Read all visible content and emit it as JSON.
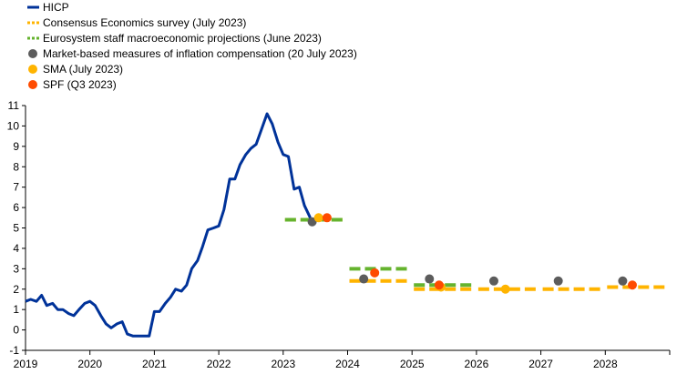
{
  "chart_data": {
    "type": "line",
    "title": "",
    "xlabel": "",
    "ylabel": "",
    "xlim": [
      2019.0,
      2029.0
    ],
    "ylim": [
      -1,
      11
    ],
    "x_ticks": [
      "2019",
      "2020",
      "2021",
      "2022",
      "2023",
      "2024",
      "2025",
      "2026",
      "2027",
      "2028"
    ],
    "y_ticks": [
      "-1",
      "0",
      "1",
      "2",
      "3",
      "4",
      "5",
      "6",
      "7",
      "8",
      "9",
      "10",
      "11"
    ],
    "grid": "none",
    "legend_position": "top-left",
    "legend": [
      {
        "label": "HICP",
        "style": "line",
        "color": "#003299"
      },
      {
        "label": "Consensus Economics survey (July 2023)",
        "style": "dashed",
        "color": "#ffb400"
      },
      {
        "label": "Eurosystem staff macroeconomic projections (June 2023)",
        "style": "dashed",
        "color": "#65b32e"
      },
      {
        "label": "Market-based measures of inflation compensation (20 July 2023)",
        "style": "dot",
        "color": "#5c5c5c"
      },
      {
        "label": "SMA (July 2023)",
        "style": "dot",
        "color": "#ffb400"
      },
      {
        "label": "SPF (Q3 2023)",
        "style": "dot",
        "color": "#ff4b00"
      }
    ],
    "series": [
      {
        "name": "HICP",
        "color": "#003299",
        "x": [
          2019.0,
          2019.08,
          2019.17,
          2019.25,
          2019.33,
          2019.42,
          2019.5,
          2019.58,
          2019.67,
          2019.75,
          2019.83,
          2019.92,
          2020.0,
          2020.08,
          2020.17,
          2020.25,
          2020.33,
          2020.42,
          2020.5,
          2020.58,
          2020.67,
          2020.75,
          2020.83,
          2020.92,
          2021.0,
          2021.08,
          2021.17,
          2021.25,
          2021.33,
          2021.42,
          2021.5,
          2021.58,
          2021.67,
          2021.75,
          2021.83,
          2021.92,
          2022.0,
          2022.08,
          2022.17,
          2022.25,
          2022.33,
          2022.42,
          2022.5,
          2022.58,
          2022.67,
          2022.75,
          2022.83,
          2022.92,
          2023.0,
          2023.08,
          2023.17,
          2023.25,
          2023.33,
          2023.42
        ],
        "values": [
          1.4,
          1.5,
          1.4,
          1.7,
          1.2,
          1.3,
          1.0,
          1.0,
          0.8,
          0.7,
          1.0,
          1.3,
          1.4,
          1.2,
          0.7,
          0.3,
          0.1,
          0.3,
          0.4,
          -0.2,
          -0.3,
          -0.3,
          -0.3,
          -0.3,
          0.9,
          0.9,
          1.3,
          1.6,
          2.0,
          1.9,
          2.2,
          3.0,
          3.4,
          4.1,
          4.9,
          5.0,
          5.1,
          5.9,
          7.4,
          7.4,
          8.1,
          8.6,
          8.9,
          9.1,
          9.9,
          10.6,
          10.1,
          9.2,
          8.6,
          8.5,
          6.9,
          7.0,
          6.1,
          5.5
        ]
      },
      {
        "name": "Consensus Economics survey (July 2023)",
        "color": "#ffb400",
        "style": "dashed",
        "segments": [
          {
            "x": [
              2023.0,
              2024.0
            ],
            "value": 5.4
          },
          {
            "x": [
              2024.0,
              2025.0
            ],
            "value": 2.4
          },
          {
            "x": [
              2025.0,
              2026.0
            ],
            "value": 2.0
          },
          {
            "x": [
              2026.0,
              2027.0
            ],
            "value": 2.0
          },
          {
            "x": [
              2027.0,
              2028.0
            ],
            "value": 2.0
          },
          {
            "x": [
              2028.0,
              2029.0
            ],
            "value": 2.1
          }
        ]
      },
      {
        "name": "Eurosystem staff macroeconomic projections (June 2023)",
        "color": "#65b32e",
        "style": "dashed",
        "segments": [
          {
            "x": [
              2023.0,
              2024.0
            ],
            "value": 5.4
          },
          {
            "x": [
              2024.0,
              2025.0
            ],
            "value": 3.0
          },
          {
            "x": [
              2025.0,
              2026.0
            ],
            "value": 2.2
          }
        ]
      },
      {
        "name": "Market-based measures of inflation compensation (20 July 2023)",
        "color": "#5c5c5c",
        "style": "dot",
        "points": [
          {
            "x": 2023.45,
            "value": 5.3
          },
          {
            "x": 2024.25,
            "value": 2.5
          },
          {
            "x": 2025.27,
            "value": 2.5
          },
          {
            "x": 2026.27,
            "value": 2.4
          },
          {
            "x": 2027.27,
            "value": 2.4
          },
          {
            "x": 2028.27,
            "value": 2.4
          }
        ]
      },
      {
        "name": "SMA (July 2023)",
        "color": "#ffb400",
        "style": "dot",
        "points": [
          {
            "x": 2023.55,
            "value": 5.5
          },
          {
            "x": 2025.45,
            "value": 2.1
          },
          {
            "x": 2026.45,
            "value": 2.0
          }
        ]
      },
      {
        "name": "SPF (Q3 2023)",
        "color": "#ff4b00",
        "style": "dot",
        "points": [
          {
            "x": 2023.68,
            "value": 5.5
          },
          {
            "x": 2024.42,
            "value": 2.8
          },
          {
            "x": 2025.42,
            "value": 2.2
          },
          {
            "x": 2028.42,
            "value": 2.2
          }
        ]
      }
    ]
  }
}
